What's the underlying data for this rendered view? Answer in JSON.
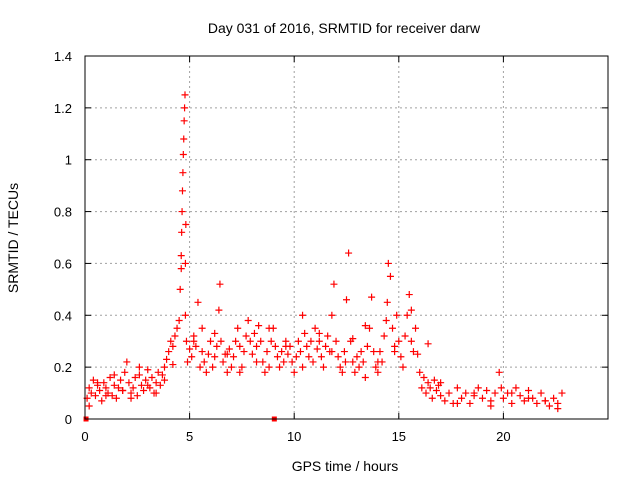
{
  "chart_data": {
    "type": "scatter",
    "title": "Day 031 of 2016, SRMTID for receiver darw",
    "xlabel": "GPS time / hours",
    "ylabel": "SRMTID / TECUs",
    "xlim": [
      0,
      25
    ],
    "ylim": [
      0,
      1.4
    ],
    "xticks": [
      0,
      5,
      10,
      15,
      20
    ],
    "xtick_labels": [
      "0",
      "5",
      "10",
      "15",
      "20"
    ],
    "yticks": [
      0,
      0.2,
      0.4,
      0.6,
      0.8,
      1.0,
      1.2,
      1.4
    ],
    "ytick_labels": [
      "0",
      "0.2",
      "0.4",
      "0.6",
      "0.8",
      "1",
      "1.2",
      "1.4"
    ],
    "grid": true,
    "marker": "plus",
    "color": "#ff0000",
    "series": [
      {
        "name": "SRMTID",
        "x": [
          0.1,
          0.2,
          0.3,
          0.4,
          0.5,
          0.6,
          0.7,
          0.8,
          0.9,
          1.0,
          1.1,
          1.2,
          1.3,
          1.4,
          1.5,
          1.6,
          1.7,
          1.8,
          1.9,
          2.0,
          2.1,
          2.2,
          2.3,
          2.4,
          2.5,
          2.6,
          2.7,
          2.8,
          2.9,
          3.0,
          3.1,
          3.2,
          3.3,
          3.4,
          3.5,
          3.6,
          3.7,
          3.8,
          3.9,
          4.0,
          4.1,
          4.2,
          4.3,
          4.4,
          4.5,
          4.55,
          4.6,
          4.6,
          4.62,
          4.64,
          4.66,
          4.68,
          4.7,
          4.72,
          4.74,
          4.76,
          4.78,
          4.8,
          4.8,
          4.82,
          4.85,
          4.9,
          5.0,
          5.1,
          5.2,
          5.3,
          5.4,
          5.5,
          5.6,
          5.7,
          5.8,
          5.9,
          6.0,
          6.1,
          6.2,
          6.3,
          6.4,
          6.45,
          6.5,
          6.6,
          6.7,
          6.8,
          6.9,
          7.0,
          7.1,
          7.2,
          7.3,
          7.4,
          7.5,
          7.6,
          7.7,
          7.8,
          7.9,
          8.0,
          8.1,
          8.2,
          8.3,
          8.4,
          8.5,
          8.6,
          8.7,
          8.8,
          8.9,
          9.0,
          9.1,
          9.2,
          9.3,
          9.4,
          9.5,
          9.6,
          9.7,
          9.8,
          9.9,
          10.0,
          10.1,
          10.2,
          10.3,
          10.4,
          10.5,
          10.6,
          10.7,
          10.8,
          10.9,
          11.0,
          11.1,
          11.2,
          11.3,
          11.4,
          11.5,
          11.6,
          11.7,
          11.8,
          11.9,
          12.0,
          12.1,
          12.2,
          12.3,
          12.4,
          12.45,
          12.5,
          12.6,
          12.7,
          12.8,
          12.9,
          13.0,
          13.1,
          13.2,
          13.3,
          13.4,
          13.5,
          13.6,
          13.7,
          13.8,
          13.9,
          14.0,
          14.1,
          14.2,
          14.3,
          14.4,
          14.45,
          14.5,
          14.6,
          14.7,
          14.8,
          14.9,
          15.0,
          15.1,
          15.2,
          15.3,
          15.4,
          15.5,
          15.6,
          15.7,
          15.8,
          15.9,
          16.0,
          16.1,
          16.2,
          16.3,
          16.4,
          16.5,
          16.6,
          16.7,
          16.8,
          16.9,
          17.0,
          17.2,
          17.4,
          17.6,
          17.8,
          18.0,
          18.2,
          18.4,
          18.6,
          18.8,
          19.0,
          19.2,
          19.4,
          19.6,
          19.8,
          19.9,
          20.0,
          20.2,
          20.4,
          20.6,
          20.8,
          21.0,
          21.2,
          21.4,
          21.6,
          21.8,
          22.0,
          22.2,
          22.4,
          22.6,
          22.8,
          0.2,
          0.6,
          1.0,
          1.4,
          1.8,
          2.2,
          2.6,
          3.0,
          3.4,
          3.8,
          4.2,
          5.2,
          5.6,
          6.2,
          6.8,
          7.4,
          8.2,
          8.8,
          9.6,
          10.4,
          11.2,
          11.8,
          12.8,
          13.4,
          14.0,
          14.8,
          15.6,
          16.4,
          17.0,
          17.8,
          18.6,
          19.4,
          20.4,
          21.2,
          22.0,
          22.6
        ],
        "y": [
          0.08,
          0.12,
          0.1,
          0.15,
          0.09,
          0.13,
          0.11,
          0.07,
          0.14,
          0.12,
          0.1,
          0.16,
          0.09,
          0.13,
          0.08,
          0.12,
          0.15,
          0.11,
          0.18,
          0.22,
          0.14,
          0.1,
          0.12,
          0.16,
          0.09,
          0.17,
          0.13,
          0.11,
          0.15,
          0.19,
          0.12,
          0.16,
          0.1,
          0.14,
          0.18,
          0.13,
          0.17,
          0.2,
          0.23,
          0.26,
          0.3,
          0.28,
          0.32,
          0.35,
          0.38,
          0.5,
          0.58,
          0.63,
          0.72,
          0.8,
          0.88,
          0.95,
          1.02,
          1.08,
          1.15,
          1.2,
          1.25,
          0.4,
          0.6,
          0.75,
          0.3,
          0.22,
          0.27,
          0.24,
          0.32,
          0.28,
          0.45,
          0.2,
          0.26,
          0.22,
          0.18,
          0.25,
          0.3,
          0.2,
          0.24,
          0.28,
          0.42,
          0.52,
          0.3,
          0.22,
          0.25,
          0.18,
          0.27,
          0.2,
          0.24,
          0.3,
          0.35,
          0.28,
          0.2,
          0.26,
          0.32,
          0.38,
          0.3,
          0.25,
          0.33,
          0.28,
          0.36,
          0.3,
          0.22,
          0.18,
          0.26,
          0.2,
          0.3,
          0.35,
          0.28,
          0.24,
          0.2,
          0.26,
          0.22,
          0.3,
          0.25,
          0.28,
          0.22,
          0.18,
          0.24,
          0.3,
          0.26,
          0.2,
          0.33,
          0.28,
          0.24,
          0.3,
          0.22,
          0.35,
          0.27,
          0.3,
          0.24,
          0.2,
          0.28,
          0.32,
          0.26,
          0.4,
          0.52,
          0.3,
          0.24,
          0.2,
          0.18,
          0.26,
          0.22,
          0.46,
          0.64,
          0.3,
          0.22,
          0.18,
          0.24,
          0.2,
          0.26,
          0.22,
          0.16,
          0.28,
          0.35,
          0.47,
          0.26,
          0.2,
          0.18,
          0.26,
          0.22,
          0.32,
          0.38,
          0.45,
          0.6,
          0.55,
          0.35,
          0.28,
          0.4,
          0.3,
          0.24,
          0.2,
          0.32,
          0.4,
          0.48,
          0.3,
          0.26,
          0.35,
          0.25,
          0.18,
          0.12,
          0.16,
          0.1,
          0.14,
          0.12,
          0.08,
          0.15,
          0.11,
          0.13,
          0.09,
          0.07,
          0.1,
          0.06,
          0.12,
          0.08,
          0.1,
          0.06,
          0.09,
          0.12,
          0.08,
          0.11,
          0.07,
          0.1,
          0.18,
          0.12,
          0.08,
          0.1,
          0.06,
          0.12,
          0.09,
          0.07,
          0.11,
          0.08,
          0.06,
          0.1,
          0.07,
          0.05,
          0.08,
          0.06,
          0.1,
          0.05,
          0.14,
          0.09,
          0.17,
          0.11,
          0.08,
          0.2,
          0.13,
          0.1,
          0.15,
          0.21,
          0.3,
          0.35,
          0.33,
          0.25,
          0.18,
          0.22,
          0.35,
          0.28,
          0.4,
          0.33,
          0.26,
          0.31,
          0.36,
          0.22,
          0.26,
          0.42,
          0.29,
          0.14,
          0.06,
          0.1,
          0.05,
          0.1,
          0.08,
          0.07,
          0.04
        ]
      }
    ],
    "zero_markers_x": [
      0.05,
      9.05
    ]
  }
}
